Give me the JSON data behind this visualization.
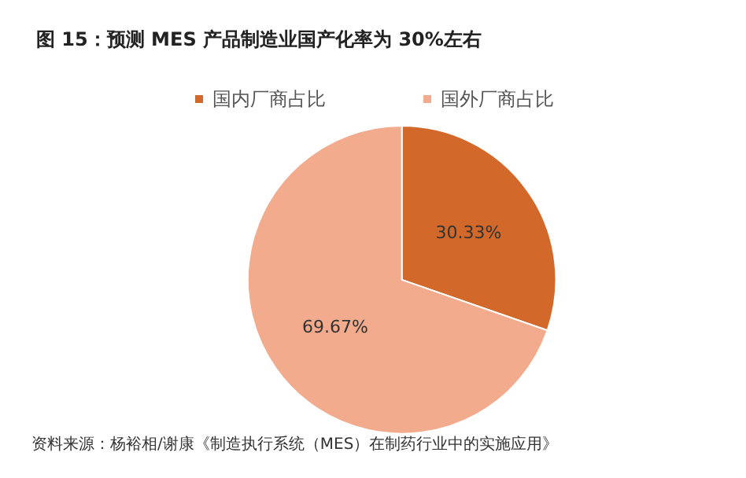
{
  "chart_data": {
    "type": "pie",
    "title": "图 15：预测 MES 产品制造业国产化率为 30%左右",
    "categories": [
      "国内厂商占比",
      "国外厂商占比"
    ],
    "values": [
      30.33,
      69.67
    ],
    "colors": [
      "#d2692a",
      "#f2ab8c"
    ],
    "value_labels": [
      "30.33%",
      "69.67%"
    ],
    "legend": "top",
    "annotations": [
      "资料来源：杨裕相/谢康《制造执行系统（MES）在制药行业中的实施应用》"
    ]
  }
}
